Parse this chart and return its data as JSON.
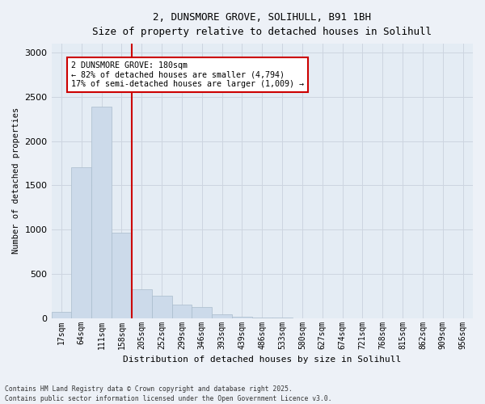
{
  "title_line1": "2, DUNSMORE GROVE, SOLIHULL, B91 1BH",
  "title_line2": "Size of property relative to detached houses in Solihull",
  "xlabel": "Distribution of detached houses by size in Solihull",
  "ylabel": "Number of detached properties",
  "bar_labels": [
    "17sqm",
    "64sqm",
    "111sqm",
    "158sqm",
    "205sqm",
    "252sqm",
    "299sqm",
    "346sqm",
    "393sqm",
    "439sqm",
    "486sqm",
    "533sqm",
    "580sqm",
    "627sqm",
    "674sqm",
    "721sqm",
    "768sqm",
    "815sqm",
    "862sqm",
    "909sqm",
    "956sqm"
  ],
  "bar_values": [
    70,
    1700,
    2390,
    960,
    325,
    250,
    155,
    120,
    45,
    15,
    5,
    3,
    0,
    0,
    0,
    0,
    0,
    0,
    0,
    0,
    0
  ],
  "bar_color": "#ccdaea",
  "bar_edge_color": "#aabccc",
  "grid_color": "#cdd5e0",
  "background_color": "#e4ecf4",
  "fig_background_color": "#edf1f7",
  "vline_x": 3.5,
  "vline_color": "#cc0000",
  "annotation_text": "2 DUNSMORE GROVE: 180sqm\n← 82% of detached houses are smaller (4,794)\n17% of semi-detached houses are larger (1,009) →",
  "annotation_box_color": "#cc0000",
  "ylim": [
    0,
    3100
  ],
  "yticks": [
    0,
    500,
    1000,
    1500,
    2000,
    2500,
    3000
  ],
  "footer_line1": "Contains HM Land Registry data © Crown copyright and database right 2025.",
  "footer_line2": "Contains public sector information licensed under the Open Government Licence v3.0."
}
